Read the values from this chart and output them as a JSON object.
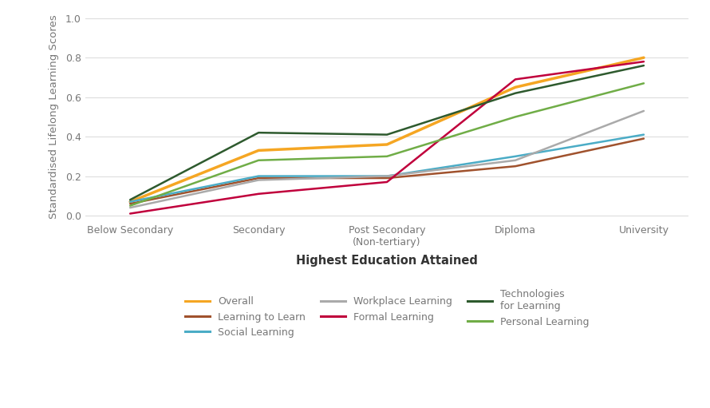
{
  "categories": [
    "Below Secondary",
    "Secondary",
    "Post Secondary\n(Non-tertiary)",
    "Diploma",
    "University"
  ],
  "series": {
    "Overall": {
      "values": [
        0.07,
        0.33,
        0.36,
        0.65,
        0.8
      ],
      "color": "#F5A623",
      "linewidth": 2.5
    },
    "Learning to Learn": {
      "values": [
        0.06,
        0.19,
        0.19,
        0.25,
        0.39
      ],
      "color": "#A0522D",
      "linewidth": 1.8
    },
    "Social Learning": {
      "values": [
        0.07,
        0.2,
        0.2,
        0.3,
        0.41
      ],
      "color": "#4BACC6",
      "linewidth": 1.8
    },
    "Workplace Learning": {
      "values": [
        0.04,
        0.18,
        0.2,
        0.28,
        0.53
      ],
      "color": "#AAAAAA",
      "linewidth": 1.8
    },
    "Formal Learning": {
      "values": [
        0.01,
        0.11,
        0.17,
        0.69,
        0.78
      ],
      "color": "#C0003C",
      "linewidth": 1.8
    },
    "Technologies for Learning": {
      "values": [
        0.08,
        0.42,
        0.41,
        0.62,
        0.76
      ],
      "color": "#2E5A2E",
      "linewidth": 1.8
    },
    "Personal Learning": {
      "values": [
        0.05,
        0.28,
        0.3,
        0.5,
        0.67
      ],
      "color": "#70AD47",
      "linewidth": 1.8
    }
  },
  "ylabel": "Standardised Lifelong Learning Scores",
  "xlabel": "Highest Education Attained",
  "ylim": [
    -0.03,
    1.03
  ],
  "yticks": [
    0.0,
    0.2,
    0.4,
    0.6,
    0.8,
    1.0
  ],
  "background_color": "#FFFFFF",
  "grid_color": "#DDDDDD",
  "legend_col1": [
    "Overall",
    "Workplace Learning",
    "Personal Learning"
  ],
  "legend_col2": [
    "Learning to Learn",
    "Formal Learning"
  ],
  "legend_col3": [
    "Social Learning",
    "Technologies\nfor Learning"
  ]
}
